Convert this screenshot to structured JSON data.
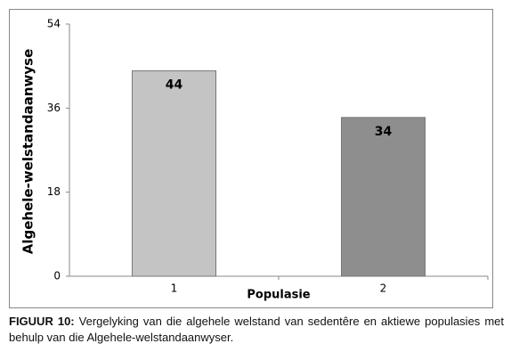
{
  "chart_data": {
    "type": "bar",
    "categories": [
      "1",
      "2"
    ],
    "values": [
      44,
      34
    ],
    "colors": [
      "#c4c4c4",
      "#8e8e8e"
    ],
    "x_label": "Populasie",
    "y_label": "Algehele-welstandaanwyse",
    "ylim": [
      0,
      54
    ],
    "yticks": [
      0,
      18,
      36,
      54
    ],
    "grid": false
  },
  "figure_caption": {
    "label": "FIGUUR 10:",
    "text": "Vergelyking van die algehele welstand van sedentêre en aktiewe populasies met behulp van die Algehele-welstandaanwyser."
  }
}
